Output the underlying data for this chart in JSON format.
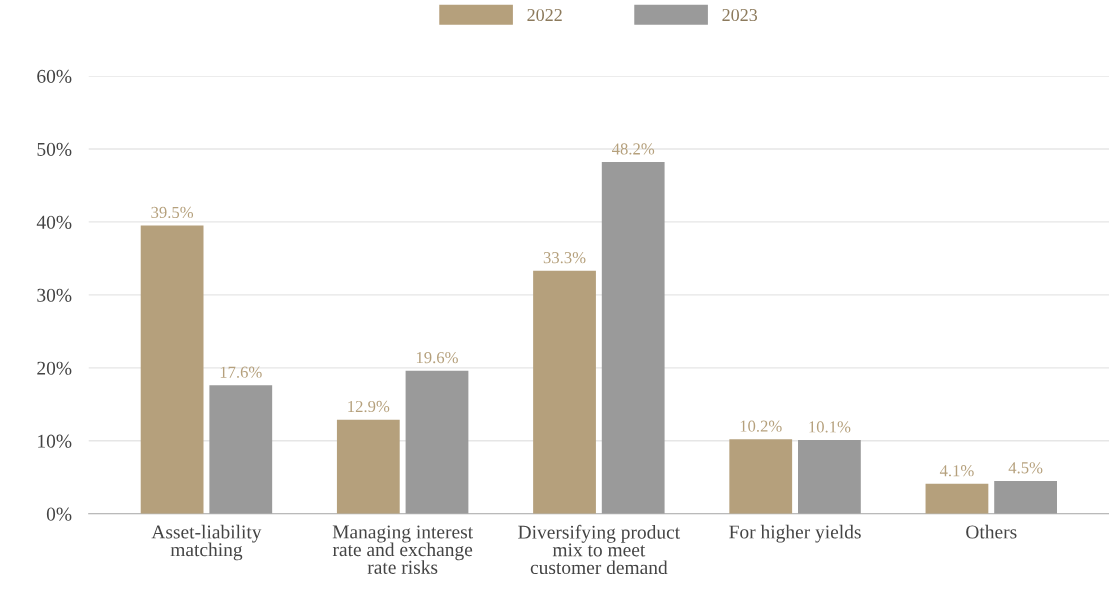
{
  "chart_data": {
    "type": "bar",
    "categories": [
      "Asset-liability\nmatching",
      "Managing interest\nrate and exchange\nrate risks",
      "Diversifying product\nmix to meet\ncustomer demand",
      "For higher yields",
      "Others"
    ],
    "series": [
      {
        "name": "2022",
        "color": "#b5a07c",
        "values": [
          39.5,
          12.9,
          33.3,
          10.2,
          4.1
        ],
        "value_labels": [
          "39.5%",
          "12.9%",
          "33.3%",
          "10.2%",
          "4.1%"
        ]
      },
      {
        "name": "2023",
        "color": "#9a9a9a",
        "values": [
          17.6,
          19.6,
          48.2,
          10.1,
          4.5
        ],
        "value_labels": [
          "17.6%",
          "19.6%",
          "48.2%",
          "10.1%",
          "4.5%"
        ]
      }
    ],
    "ylim": [
      0,
      60
    ],
    "yticks": [
      {
        "value": 0,
        "label": "0%"
      },
      {
        "value": 10,
        "label": "10%"
      },
      {
        "value": 20,
        "label": "20%"
      },
      {
        "value": 30,
        "label": "30%"
      },
      {
        "value": 40,
        "label": "40%"
      },
      {
        "value": 50,
        "label": "50%"
      },
      {
        "value": 60,
        "label": "60%"
      }
    ],
    "grid": "y",
    "legend": "top"
  }
}
